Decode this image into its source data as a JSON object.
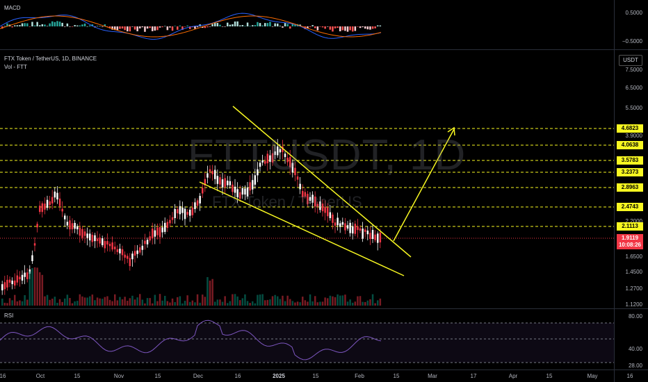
{
  "macd": {
    "label": "MACD",
    "ticks": [
      "0.5000",
      "−0.5000"
    ]
  },
  "main": {
    "title": "FTX Token / TetherUS, 1D, BINANCE",
    "vol_label": "Vol - FTT",
    "watermark": "FTTUSDT, 1D",
    "watermark_sub": "FTX Token / TetherUS",
    "unit": "USDT",
    "ticks": [
      "7.5000",
      "6.5000",
      "5.5000",
      "3.9000",
      "2.2000",
      "1.6500",
      "1.4500",
      "1.2700",
      "1.1200"
    ],
    "levels": [
      {
        "label": "4.6823",
        "color": "#f7f721"
      },
      {
        "label": "4.0638",
        "color": "#f7f721"
      },
      {
        "label": "3.5783",
        "color": "#f7f721"
      },
      {
        "label": "3.2373",
        "color": "#f7f721"
      },
      {
        "label": "2.8963",
        "color": "#f7f721"
      },
      {
        "label": "2.4743",
        "color": "#f7f721"
      },
      {
        "label": "2.1113",
        "color": "#f7f721"
      }
    ],
    "current_price": "1.9119",
    "countdown": "10:08:26",
    "down_color": "#f23645",
    "up_color": "#ffffff"
  },
  "rsi": {
    "label": "RSI",
    "ticks": [
      "80.00",
      "40.00",
      "28.00"
    ]
  },
  "x_axis": [
    "16",
    "Oct",
    "15",
    "Nov",
    "15",
    "Dec",
    "16",
    "2025",
    "15",
    "Feb",
    "15",
    "Mar",
    "17",
    "Apr",
    "15",
    "May",
    "16"
  ]
}
